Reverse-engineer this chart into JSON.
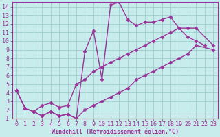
{
  "xlabel": "Windchill (Refroidissement éolien,°C)",
  "xlim": [
    -0.5,
    23.5
  ],
  "ylim": [
    1,
    14.5
  ],
  "xticks": [
    0,
    1,
    2,
    3,
    4,
    5,
    6,
    7,
    8,
    9,
    10,
    11,
    12,
    13,
    14,
    15,
    16,
    17,
    18,
    19,
    20,
    21,
    22,
    23
  ],
  "yticks": [
    1,
    2,
    3,
    4,
    5,
    6,
    7,
    8,
    9,
    10,
    11,
    12,
    13,
    14
  ],
  "bg_color": "#c8ecec",
  "grid_color": "#9ecece",
  "line_color": "#993399",
  "line1_x": [
    0,
    1,
    2,
    3,
    4,
    5,
    6,
    7,
    8,
    9,
    10,
    11,
    12,
    13,
    14,
    15,
    16,
    17,
    18,
    19,
    20,
    21,
    22
  ],
  "line1_y": [
    4.3,
    2.2,
    1.8,
    1.3,
    1.8,
    1.3,
    1.5,
    1.0,
    8.8,
    11.2,
    5.5,
    14.2,
    14.5,
    12.5,
    11.8,
    12.2,
    12.2,
    12.5,
    12.8,
    11.5,
    10.5,
    10.0,
    9.5
  ],
  "line2_x": [
    0,
    1,
    2,
    3,
    4,
    5,
    6,
    7,
    8,
    9,
    10,
    11,
    12,
    13,
    14,
    15,
    16,
    17,
    18,
    19,
    20,
    21,
    23
  ],
  "line2_y": [
    4.3,
    2.2,
    1.8,
    2.5,
    2.8,
    2.3,
    2.5,
    5.0,
    5.5,
    6.5,
    7.0,
    7.5,
    8.0,
    8.5,
    9.0,
    9.5,
    10.0,
    10.5,
    11.0,
    11.5,
    11.5,
    11.5,
    9.5
  ],
  "line3_x": [
    0,
    1,
    2,
    3,
    4,
    5,
    6,
    7,
    8,
    9,
    10,
    11,
    12,
    13,
    14,
    15,
    16,
    17,
    18,
    19,
    20,
    21,
    23
  ],
  "line3_y": [
    4.3,
    2.2,
    1.8,
    1.3,
    1.8,
    1.3,
    1.5,
    1.0,
    2.0,
    2.5,
    3.0,
    3.5,
    4.0,
    4.5,
    5.5,
    6.0,
    6.5,
    7.0,
    7.5,
    8.0,
    8.5,
    9.5,
    9.0
  ],
  "marker": "D",
  "markersize": 2.5,
  "linewidth": 1.0,
  "fontsize_axis": 6,
  "fontsize_tick": 6
}
